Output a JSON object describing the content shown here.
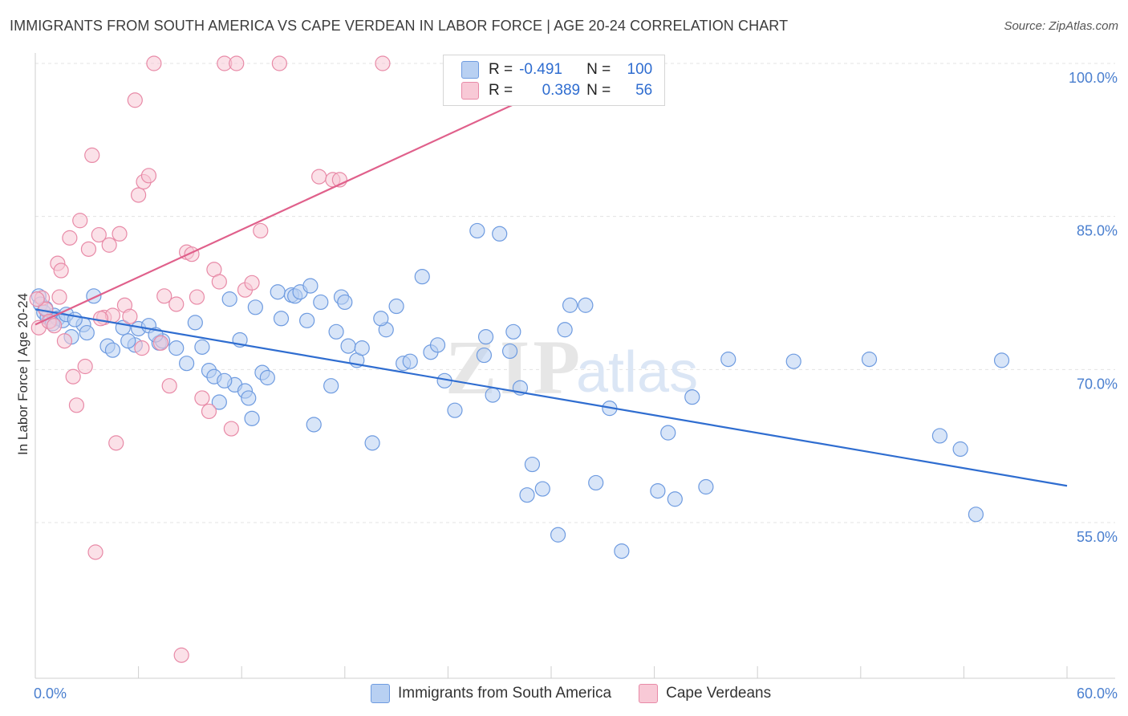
{
  "title": "IMMIGRANTS FROM SOUTH AMERICA VS CAPE VERDEAN IN LABOR FORCE | AGE 20-24 CORRELATION CHART",
  "source": "Source: ZipAtlas.com",
  "watermark": {
    "zip": "ZIP",
    "atlas": "atlas"
  },
  "legend": {
    "rows": [
      {
        "r_label": "R =",
        "r_value": "-0.491",
        "n_label": "N =",
        "n_value": "100"
      },
      {
        "r_label": "R =",
        "r_value": "0.389",
        "n_label": "N =",
        "n_value": "56"
      }
    ]
  },
  "bottom_legend": [
    "Immigrants from South America",
    "Cape Verdeans"
  ],
  "chart_data": {
    "type": "scatter",
    "title": "IMMIGRANTS FROM SOUTH AMERICA VS CAPE VERDEAN IN LABOR FORCE | AGE 20-24 CORRELATION CHART",
    "xlabel": "",
    "ylabel": "In Labor Force | Age 20-24",
    "xlim": [
      0,
      60
    ],
    "ylim": [
      40,
      102
    ],
    "x_tick_labels": [
      "0.0%",
      "60.0%"
    ],
    "y_ticks": [
      55,
      70,
      85,
      100
    ],
    "y_tick_labels": [
      "55.0%",
      "70.0%",
      "85.0%",
      "100.0%"
    ],
    "colors": {
      "blue": "#6e9be0",
      "blue_fill": "#b8d0f2",
      "blue_line": "#2f6dd0",
      "pink": "#e88aa7",
      "pink_fill": "#f8c9d6",
      "pink_line": "#e0608b"
    },
    "series": [
      {
        "name": "Immigrants from South America",
        "trend": {
          "x0": 0,
          "y0": 75.9,
          "x1": 60,
          "y1": 58.6
        },
        "points": [
          [
            0.2,
            77.2
          ],
          [
            0.3,
            76.4
          ],
          [
            0.5,
            75.6
          ],
          [
            0.7,
            75.1
          ],
          [
            0.9,
            74.8
          ],
          [
            1.1,
            75.3
          ],
          [
            1.3,
            75.0
          ],
          [
            1.6,
            74.8
          ],
          [
            1.8,
            75.4
          ],
          [
            2.1,
            73.2
          ],
          [
            2.8,
            74.4
          ],
          [
            3.0,
            73.6
          ],
          [
            4.2,
            72.3
          ],
          [
            4.5,
            71.9
          ],
          [
            5.1,
            74.1
          ],
          [
            5.8,
            72.4
          ],
          [
            6.0,
            74.0
          ],
          [
            6.6,
            74.3
          ],
          [
            7.2,
            72.6
          ],
          [
            7.4,
            72.8
          ],
          [
            8.2,
            72.1
          ],
          [
            8.8,
            70.6
          ],
          [
            9.3,
            74.6
          ],
          [
            9.7,
            72.2
          ],
          [
            10.1,
            69.9
          ],
          [
            10.4,
            69.3
          ],
          [
            10.7,
            66.8
          ],
          [
            11.3,
            76.9
          ],
          [
            11.6,
            68.5
          ],
          [
            11.9,
            72.9
          ],
          [
            12.2,
            67.9
          ],
          [
            12.4,
            67.2
          ],
          [
            12.6,
            65.2
          ],
          [
            12.8,
            76.1
          ],
          [
            13.2,
            69.7
          ],
          [
            13.5,
            69.2
          ],
          [
            14.1,
            77.6
          ],
          [
            14.3,
            75.0
          ],
          [
            14.9,
            77.3
          ],
          [
            15.1,
            77.2
          ],
          [
            15.4,
            77.6
          ],
          [
            16.0,
            78.2
          ],
          [
            16.2,
            64.6
          ],
          [
            16.6,
            76.6
          ],
          [
            17.2,
            68.4
          ],
          [
            17.5,
            73.7
          ],
          [
            17.8,
            77.1
          ],
          [
            18.0,
            76.6
          ],
          [
            18.2,
            72.3
          ],
          [
            18.7,
            70.9
          ],
          [
            19.0,
            72.1
          ],
          [
            19.6,
            62.8
          ],
          [
            20.4,
            73.9
          ],
          [
            21.0,
            76.2
          ],
          [
            21.4,
            70.6
          ],
          [
            21.8,
            70.8
          ],
          [
            22.5,
            79.1
          ],
          [
            23.0,
            71.7
          ],
          [
            23.4,
            72.4
          ],
          [
            23.8,
            68.9
          ],
          [
            24.4,
            66.0
          ],
          [
            25.7,
            83.6
          ],
          [
            26.2,
            73.2
          ],
          [
            26.6,
            67.5
          ],
          [
            27.0,
            83.3
          ],
          [
            27.6,
            71.8
          ],
          [
            27.8,
            73.7
          ],
          [
            28.2,
            68.2
          ],
          [
            28.6,
            57.7
          ],
          [
            28.9,
            60.7
          ],
          [
            29.5,
            58.3
          ],
          [
            30.4,
            53.8
          ],
          [
            30.8,
            73.9
          ],
          [
            31.1,
            76.3
          ],
          [
            32.0,
            76.3
          ],
          [
            32.6,
            58.9
          ],
          [
            33.4,
            66.2
          ],
          [
            34.1,
            52.2
          ],
          [
            36.2,
            58.1
          ],
          [
            36.8,
            63.8
          ],
          [
            37.2,
            57.3
          ],
          [
            38.2,
            67.3
          ],
          [
            39.0,
            58.5
          ],
          [
            40.3,
            71.0
          ],
          [
            44.1,
            70.8
          ],
          [
            48.5,
            71.0
          ],
          [
            52.6,
            63.5
          ],
          [
            53.8,
            62.2
          ],
          [
            54.7,
            55.8
          ],
          [
            56.2,
            70.9
          ],
          [
            0.6,
            76.0
          ],
          [
            1.0,
            74.5
          ],
          [
            2.3,
            74.9
          ],
          [
            3.4,
            77.2
          ],
          [
            5.4,
            72.8
          ],
          [
            7.0,
            73.4
          ],
          [
            11.0,
            68.9
          ],
          [
            15.8,
            74.8
          ],
          [
            20.1,
            75.0
          ],
          [
            26.1,
            71.4
          ]
        ]
      },
      {
        "name": "Cape Verdeans",
        "trend": {
          "x0": 0,
          "y0": 74.4,
          "x1": 33,
          "y1": 100.0
        },
        "points": [
          [
            0.2,
            74.1
          ],
          [
            0.4,
            77.0
          ],
          [
            0.6,
            75.9
          ],
          [
            0.8,
            74.7
          ],
          [
            1.1,
            74.3
          ],
          [
            1.3,
            80.4
          ],
          [
            1.5,
            79.7
          ],
          [
            1.7,
            72.8
          ],
          [
            2.0,
            82.9
          ],
          [
            2.2,
            69.3
          ],
          [
            2.4,
            66.5
          ],
          [
            2.6,
            84.6
          ],
          [
            2.9,
            70.3
          ],
          [
            3.1,
            81.8
          ],
          [
            3.3,
            91.0
          ],
          [
            3.5,
            52.1
          ],
          [
            3.7,
            83.2
          ],
          [
            4.0,
            75.1
          ],
          [
            4.3,
            82.2
          ],
          [
            4.5,
            75.3
          ],
          [
            4.7,
            62.8
          ],
          [
            4.9,
            83.3
          ],
          [
            5.2,
            76.3
          ],
          [
            5.5,
            75.2
          ],
          [
            5.8,
            96.4
          ],
          [
            6.0,
            87.1
          ],
          [
            6.3,
            88.4
          ],
          [
            6.6,
            89.0
          ],
          [
            6.9,
            100.0
          ],
          [
            7.3,
            72.6
          ],
          [
            7.8,
            68.4
          ],
          [
            8.2,
            76.4
          ],
          [
            8.5,
            42.0
          ],
          [
            8.8,
            81.5
          ],
          [
            9.1,
            81.3
          ],
          [
            9.4,
            77.1
          ],
          [
            9.7,
            67.2
          ],
          [
            10.1,
            65.9
          ],
          [
            10.4,
            79.8
          ],
          [
            10.7,
            78.6
          ],
          [
            11.0,
            100.0
          ],
          [
            11.4,
            64.2
          ],
          [
            11.7,
            100.0
          ],
          [
            12.2,
            77.8
          ],
          [
            12.6,
            78.5
          ],
          [
            13.1,
            83.6
          ],
          [
            14.2,
            100.0
          ],
          [
            16.5,
            88.9
          ],
          [
            17.3,
            88.6
          ],
          [
            17.7,
            88.6
          ],
          [
            20.2,
            100.0
          ],
          [
            0.1,
            76.9
          ],
          [
            1.4,
            77.1
          ],
          [
            3.8,
            75.0
          ],
          [
            6.2,
            72.1
          ],
          [
            7.5,
            77.2
          ]
        ]
      }
    ]
  }
}
